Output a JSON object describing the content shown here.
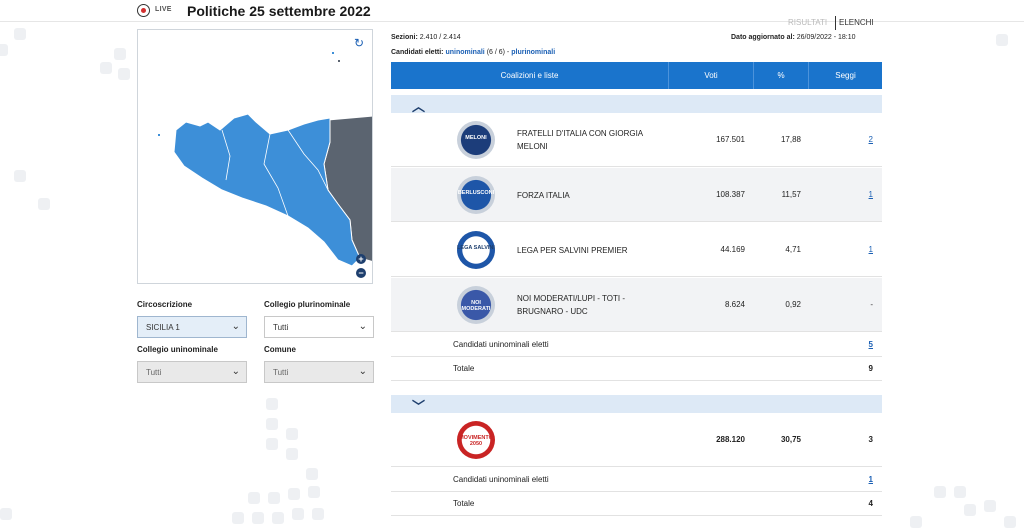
{
  "header": {
    "live_label": "LIVE",
    "title": "Politiche 25 settembre 2022",
    "tab_risultati": "RISULTATI",
    "tab_elenchi": "ELENCHI"
  },
  "filters": {
    "circoscrizione_label": "Circoscrizione",
    "circoscrizione_value": "SICILIA 1",
    "plurinominale_label": "Collegio plurinominale",
    "plurinominale_value": "Tutti",
    "uninominale_label": "Collegio uninominale",
    "uninominale_value": "Tutti",
    "comune_label": "Comune",
    "comune_value": "Tutti"
  },
  "info": {
    "sezioni_label": "Sezioni:",
    "sezioni_value": "2.410 / 2.414",
    "aggiornato_label": "Dato aggiornato al:",
    "aggiornato_value": "26/09/2022 - 18:10",
    "candidati_label": "Candidati eletti:",
    "uninominali_link": "uninominali",
    "uninominali_count": "(6 / 6) -",
    "plurinominali_link": "plurinominali"
  },
  "table": {
    "headers": {
      "coalizioni": "Coalizioni e liste",
      "voti": "Voti",
      "pct": "%",
      "seggi": "Seggi"
    },
    "group1": {
      "rows": [
        {
          "name": "FRATELLI D'ITALIA CON GIORGIA MELONI",
          "voti": "167.501",
          "pct": "17,88",
          "seggi": "2",
          "logo_text": "MELONI"
        },
        {
          "name": "FORZA ITALIA",
          "voti": "108.387",
          "pct": "11,57",
          "seggi": "1",
          "logo_text": "BERLUSCONI"
        },
        {
          "name": "LEGA PER SALVINI PREMIER",
          "voti": "44.169",
          "pct": "4,71",
          "seggi": "1",
          "logo_text": "LEGA SALVINI"
        },
        {
          "name": "NOI MODERATI/LUPI - TOTI - BRUGNARO - UDC",
          "voti": "8.624",
          "pct": "0,92",
          "seggi": "-",
          "logo_text": "NOI MODERATI"
        }
      ],
      "candidati_label": "Candidati uninominali eletti",
      "candidati_value": "5",
      "totale_label": "Totale",
      "totale_value": "9"
    },
    "group2": {
      "rows": [
        {
          "name": "",
          "voti": "288.120",
          "pct": "30,75",
          "seggi": "3",
          "logo_text": "MOVIMENTO 2050"
        }
      ],
      "candidati_label": "Candidati uninominali eletti",
      "candidati_value": "1",
      "totale_label": "Totale",
      "totale_value": "4"
    }
  },
  "icons": {
    "refresh": "refresh-icon",
    "zoom_in": "zoom-in-icon",
    "zoom_out": "zoom-out-icon",
    "chevron_up": "chevron-up-icon",
    "chevron_down": "chevron-down-icon"
  },
  "colors": {
    "header_blue": "#1a74cc",
    "map_region": "#3d8fd8",
    "map_other": "#5b6470",
    "group_bar": "#dde9f6",
    "link": "#1a5fb4"
  }
}
